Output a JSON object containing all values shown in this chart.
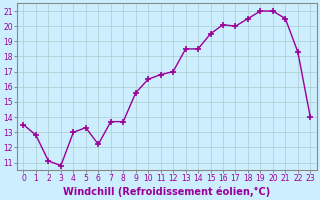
{
  "x": [
    0,
    1,
    2,
    3,
    4,
    5,
    6,
    7,
    8,
    9,
    10,
    11,
    12,
    13,
    14,
    15,
    16,
    17,
    18,
    19,
    20,
    21,
    22,
    23
  ],
  "y": [
    13.5,
    12.8,
    11.1,
    10.8,
    13.0,
    13.3,
    12.2,
    13.7,
    13.7,
    15.6,
    16.5,
    16.8,
    17.0,
    18.5,
    18.5,
    19.5,
    20.1,
    20.0,
    20.5,
    21.0,
    21.0,
    20.5,
    18.3,
    14.0
  ],
  "line_color": "#990099",
  "marker": "+",
  "marker_size": 4,
  "marker_linewidth": 1.2,
  "background_color": "#cceeff",
  "grid_color": "#aacccc",
  "xlabel": "Windchill (Refroidissement éolien,°C)",
  "xlabel_color": "#990099",
  "ylabel_ticks": [
    11,
    12,
    13,
    14,
    15,
    16,
    17,
    18,
    19,
    20,
    21
  ],
  "xticks": [
    0,
    1,
    2,
    3,
    4,
    5,
    6,
    7,
    8,
    9,
    10,
    11,
    12,
    13,
    14,
    15,
    16,
    17,
    18,
    19,
    20,
    21,
    22,
    23
  ],
  "ylim": [
    10.5,
    21.5
  ],
  "xlim": [
    -0.5,
    23.5
  ],
  "tick_color": "#990099",
  "tick_fontsize": 5.5,
  "xlabel_fontsize": 7.0,
  "linewidth": 1.0
}
